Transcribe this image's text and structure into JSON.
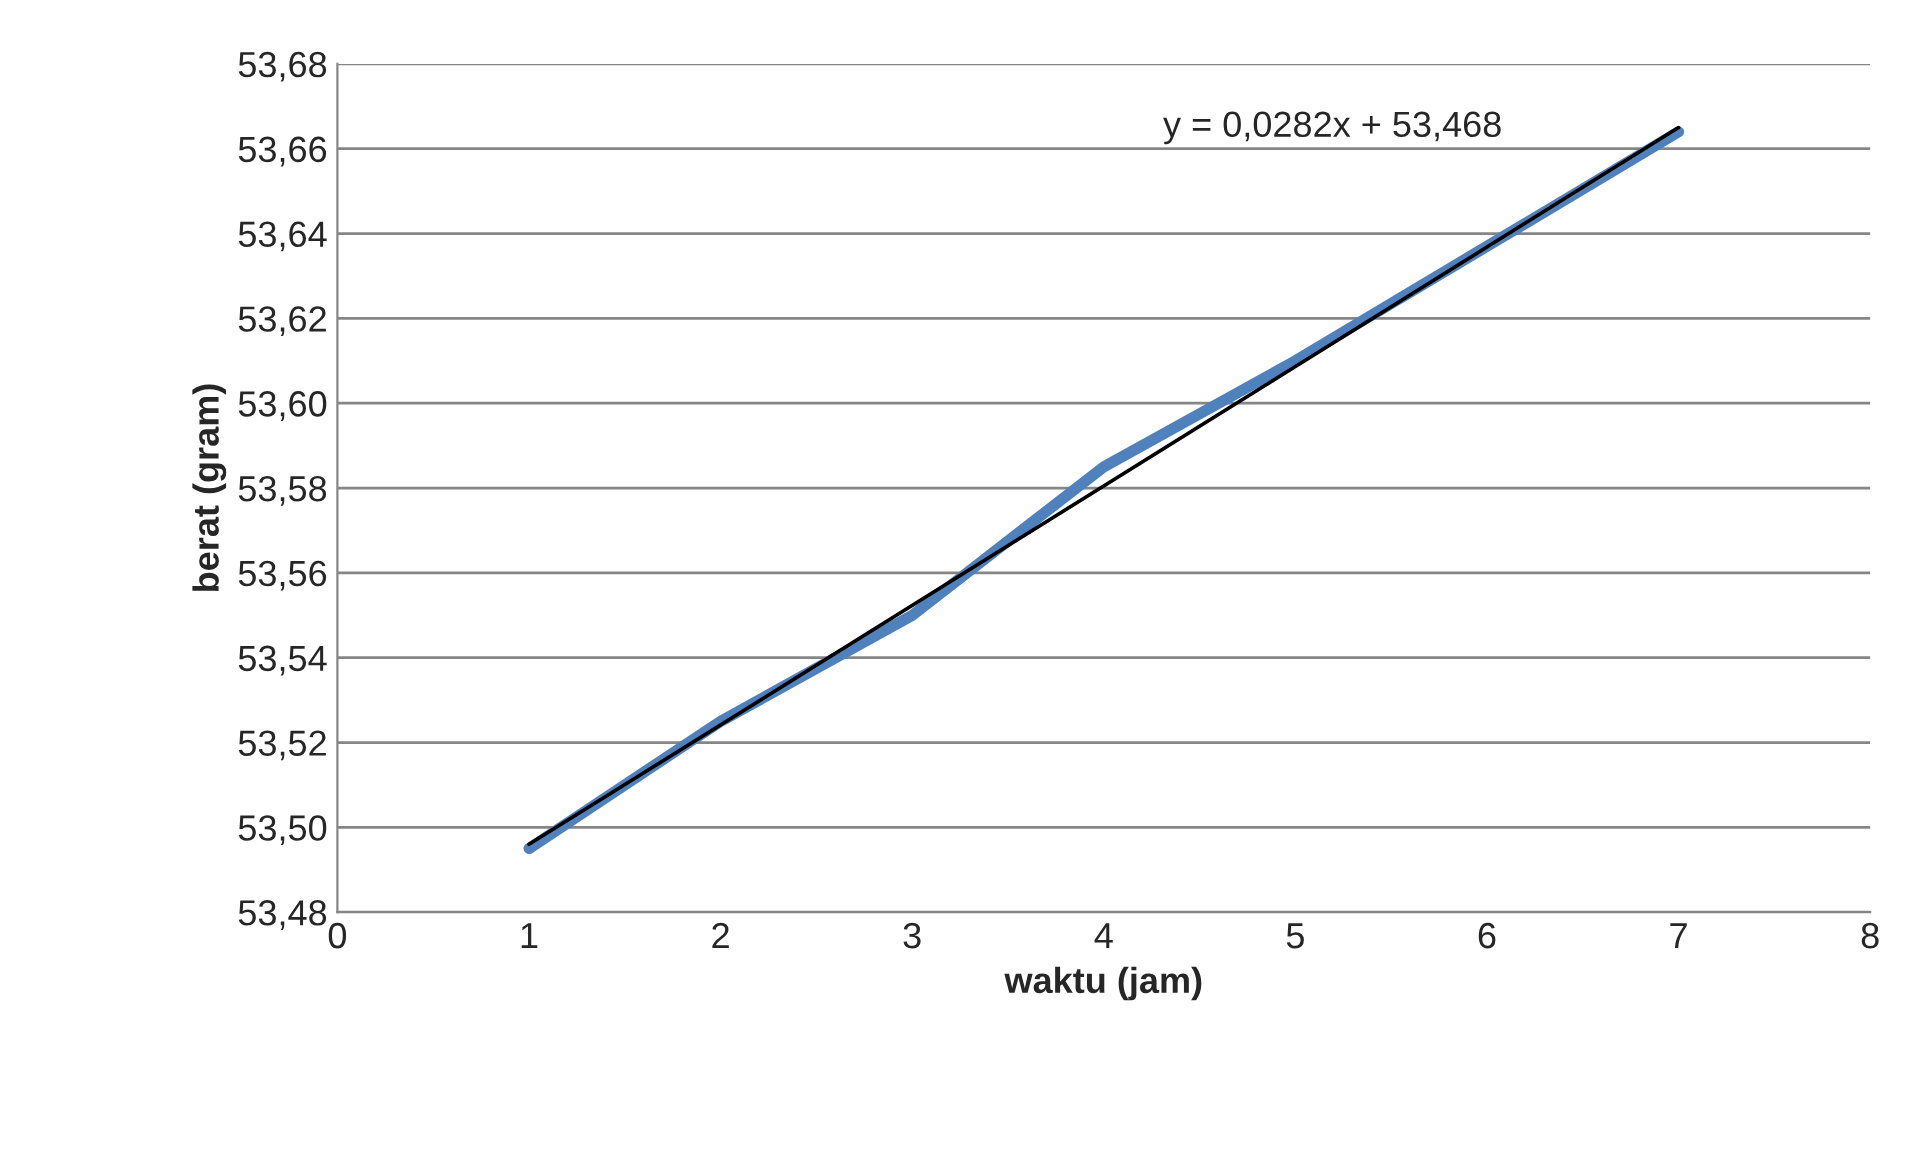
{
  "chart_data": {
    "type": "line",
    "xlabel": "waktu (jam)",
    "ylabel": "berat (gram)",
    "x": [
      1,
      2,
      3,
      4,
      5,
      6,
      7
    ],
    "series": [
      {
        "color": "#4f81bd",
        "values": [
          53.495,
          53.525,
          53.55,
          53.585,
          53.61,
          53.637,
          53.664
        ]
      },
      {
        "type": "line",
        "color": "#000000",
        "x": [
          1,
          7
        ],
        "values": [
          53.496,
          53.665
        ]
      }
    ],
    "xlim": [
      0,
      8
    ],
    "xticks": [
      0,
      1,
      2,
      3,
      4,
      5,
      6,
      7,
      8
    ],
    "ylim": [
      53.48,
      53.68
    ],
    "yticks": [
      {
        "value": 53.48,
        "label": "53,48"
      },
      {
        "value": 53.5,
        "label": "53,50"
      },
      {
        "value": 53.52,
        "label": "53,52"
      },
      {
        "value": 53.54,
        "label": "53,54"
      },
      {
        "value": 53.56,
        "label": "53,56"
      },
      {
        "value": 53.58,
        "label": "53,58"
      },
      {
        "value": 53.6,
        "label": "53,60"
      },
      {
        "value": 53.62,
        "label": "53,62"
      },
      {
        "value": 53.64,
        "label": "53,64"
      },
      {
        "value": 53.66,
        "label": "53,66"
      },
      {
        "value": 53.68,
        "label": "53,68"
      }
    ],
    "grid": "y",
    "marker": "none",
    "line_style": "solid",
    "annotations": [
      "y = 0,0282x + 53,468"
    ]
  }
}
